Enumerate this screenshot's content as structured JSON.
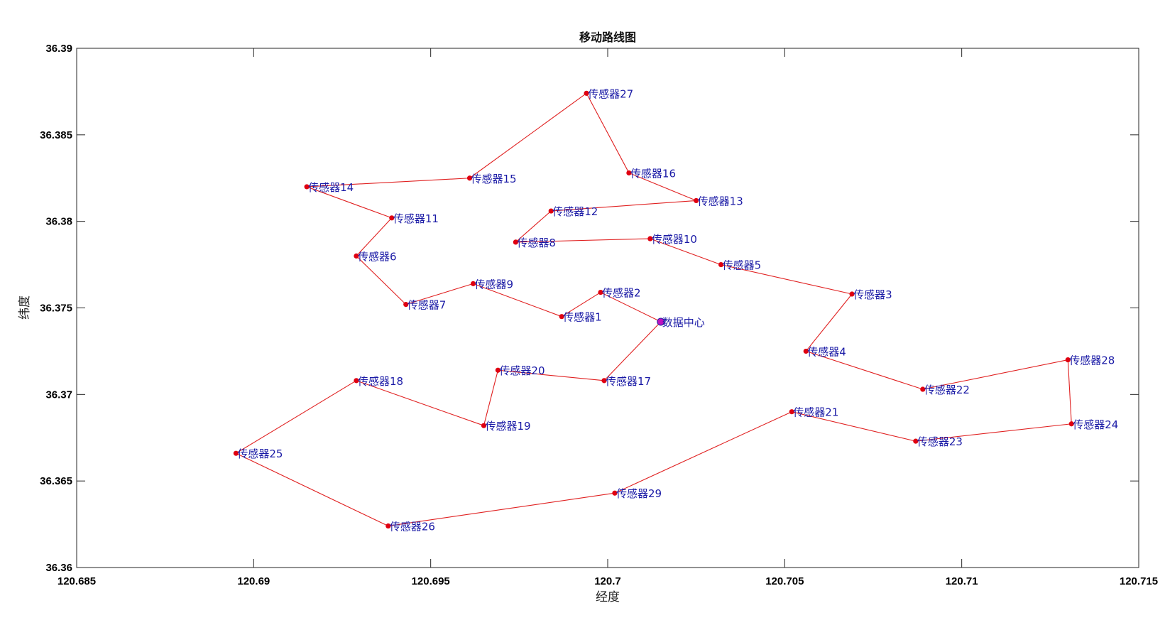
{
  "chart_data": {
    "type": "line",
    "title": "移动路线图",
    "xlabel": "经度",
    "ylabel": "纬度",
    "xlim": [
      120.685,
      120.715
    ],
    "ylim": [
      36.36,
      36.39
    ],
    "xticks": [
      "120.685",
      "120.69",
      "120.695",
      "120.7",
      "120.705",
      "120.71",
      "120.715"
    ],
    "yticks": [
      "36.36",
      "36.365",
      "36.37",
      "36.375",
      "36.38",
      "36.385",
      "36.39"
    ],
    "grid": false,
    "line_color": "#e02020",
    "point_color": "#e00010",
    "center_color": "#c010c0",
    "label_color": "#1a1aa6",
    "points": [
      {
        "label": "数据中心",
        "x": 120.7015,
        "y": 36.3742,
        "center": true
      },
      {
        "label": "传感器2",
        "x": 120.6998,
        "y": 36.3759
      },
      {
        "label": "传感器1",
        "x": 120.6987,
        "y": 36.3745
      },
      {
        "label": "传感器9",
        "x": 120.6962,
        "y": 36.3764
      },
      {
        "label": "传感器7",
        "x": 120.6943,
        "y": 36.3752
      },
      {
        "label": "传感器6",
        "x": 120.6929,
        "y": 36.378
      },
      {
        "label": "传感器11",
        "x": 120.6939,
        "y": 36.3802
      },
      {
        "label": "传感器14",
        "x": 120.6915,
        "y": 36.382
      },
      {
        "label": "传感器15",
        "x": 120.6961,
        "y": 36.3825
      },
      {
        "label": "传感器27",
        "x": 120.6994,
        "y": 36.3874
      },
      {
        "label": "传感器16",
        "x": 120.7006,
        "y": 36.3828
      },
      {
        "label": "传感器13",
        "x": 120.7025,
        "y": 36.3812
      },
      {
        "label": "传感器12",
        "x": 120.6984,
        "y": 36.3806
      },
      {
        "label": "传感器8",
        "x": 120.6974,
        "y": 36.3788
      },
      {
        "label": "传感器10",
        "x": 120.7012,
        "y": 36.379
      },
      {
        "label": "传感器5",
        "x": 120.7032,
        "y": 36.3775
      },
      {
        "label": "传感器3",
        "x": 120.7069,
        "y": 36.3758
      },
      {
        "label": "传感器4",
        "x": 120.7056,
        "y": 36.3725
      },
      {
        "label": "传感器22",
        "x": 120.7089,
        "y": 36.3703
      },
      {
        "label": "传感器28",
        "x": 120.713,
        "y": 36.372
      },
      {
        "label": "传感器24",
        "x": 120.7131,
        "y": 36.3683
      },
      {
        "label": "传感器23",
        "x": 120.7087,
        "y": 36.3673
      },
      {
        "label": "传感器21",
        "x": 120.7052,
        "y": 36.369
      },
      {
        "label": "传感器29",
        "x": 120.7002,
        "y": 36.3643
      },
      {
        "label": "传感器26",
        "x": 120.6938,
        "y": 36.3624
      },
      {
        "label": "传感器25",
        "x": 120.6895,
        "y": 36.3666
      },
      {
        "label": "传感器18",
        "x": 120.6929,
        "y": 36.3708
      },
      {
        "label": "传感器19",
        "x": 120.6965,
        "y": 36.3682
      },
      {
        "label": "传感器20",
        "x": 120.6969,
        "y": 36.3714
      },
      {
        "label": "传感器17",
        "x": 120.6999,
        "y": 36.3708
      },
      {
        "label": "数据中心",
        "x": 120.7015,
        "y": 36.3742,
        "center": true,
        "repeat": true
      }
    ]
  }
}
